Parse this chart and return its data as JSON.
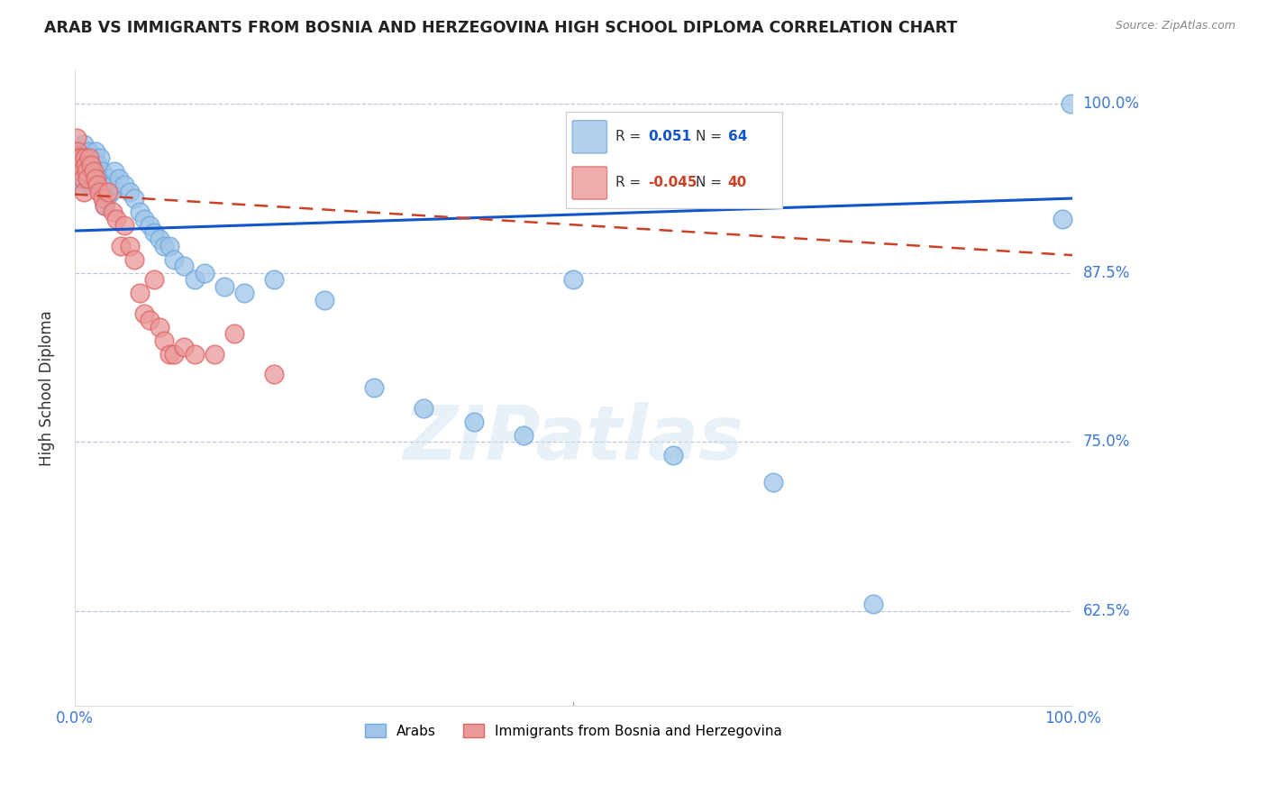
{
  "title": "ARAB VS IMMIGRANTS FROM BOSNIA AND HERZEGOVINA HIGH SCHOOL DIPLOMA CORRELATION CHART",
  "source": "Source: ZipAtlas.com",
  "ylabel": "High School Diploma",
  "ylabel_right_label_strs": [
    "100.0%",
    "87.5%",
    "75.0%",
    "62.5%"
  ],
  "ylabel_right_values": [
    1.0,
    0.875,
    0.75,
    0.625
  ],
  "legend_arab_r": "0.051",
  "legend_arab_n": "64",
  "legend_bosnia_r": "-0.045",
  "legend_bosnia_n": "40",
  "arab_color": "#9fc5e8",
  "bosnia_color": "#ea9999",
  "arab_edge_color": "#6fa8dc",
  "bosnia_edge_color": "#e06666",
  "trendline_arab_color": "#1155cc",
  "trendline_bosnia_color": "#cc4125",
  "background_color": "#ffffff",
  "watermark_text": "ZIPatlas",
  "arab_dots_x": [
    0.002,
    0.003,
    0.004,
    0.005,
    0.006,
    0.007,
    0.007,
    0.008,
    0.009,
    0.01,
    0.011,
    0.012,
    0.013,
    0.014,
    0.015,
    0.016,
    0.017,
    0.018,
    0.019,
    0.02,
    0.021,
    0.022,
    0.023,
    0.024,
    0.025,
    0.026,
    0.027,
    0.028,
    0.029,
    0.03,
    0.032,
    0.034,
    0.036,
    0.038,
    0.04,
    0.045,
    0.05,
    0.055,
    0.06,
    0.065,
    0.07,
    0.075,
    0.08,
    0.085,
    0.09,
    0.095,
    0.1,
    0.11,
    0.12,
    0.13,
    0.15,
    0.17,
    0.2,
    0.25,
    0.3,
    0.35,
    0.4,
    0.45,
    0.5,
    0.6,
    0.7,
    0.8,
    0.99,
    0.998
  ],
  "arab_dots_y": [
    0.96,
    0.95,
    0.955,
    0.945,
    0.94,
    0.965,
    0.95,
    0.96,
    0.97,
    0.955,
    0.95,
    0.945,
    0.96,
    0.955,
    0.965,
    0.95,
    0.94,
    0.955,
    0.945,
    0.96,
    0.965,
    0.95,
    0.94,
    0.955,
    0.945,
    0.96,
    0.95,
    0.94,
    0.935,
    0.925,
    0.93,
    0.945,
    0.935,
    0.94,
    0.95,
    0.945,
    0.94,
    0.935,
    0.93,
    0.92,
    0.915,
    0.91,
    0.905,
    0.9,
    0.895,
    0.895,
    0.885,
    0.88,
    0.87,
    0.875,
    0.865,
    0.86,
    0.87,
    0.855,
    0.79,
    0.775,
    0.765,
    0.755,
    0.87,
    0.74,
    0.72,
    0.63,
    0.915,
    1.0
  ],
  "bosnia_dots_x": [
    0.002,
    0.003,
    0.004,
    0.005,
    0.006,
    0.007,
    0.008,
    0.009,
    0.01,
    0.011,
    0.012,
    0.013,
    0.015,
    0.017,
    0.019,
    0.021,
    0.023,
    0.025,
    0.028,
    0.03,
    0.034,
    0.038,
    0.042,
    0.046,
    0.05,
    0.055,
    0.06,
    0.065,
    0.07,
    0.075,
    0.08,
    0.085,
    0.09,
    0.095,
    0.1,
    0.11,
    0.12,
    0.14,
    0.16,
    0.2
  ],
  "bosnia_dots_y": [
    0.975,
    0.965,
    0.96,
    0.955,
    0.95,
    0.96,
    0.945,
    0.935,
    0.96,
    0.955,
    0.95,
    0.945,
    0.96,
    0.955,
    0.95,
    0.945,
    0.94,
    0.935,
    0.93,
    0.925,
    0.935,
    0.92,
    0.915,
    0.895,
    0.91,
    0.895,
    0.885,
    0.86,
    0.845,
    0.84,
    0.87,
    0.835,
    0.825,
    0.815,
    0.815,
    0.82,
    0.815,
    0.815,
    0.83,
    0.8
  ],
  "xlim": [
    0.0,
    1.0
  ],
  "ylim": [
    0.555,
    1.025
  ],
  "arab_trend_x0": 0.0,
  "arab_trend_x1": 1.0,
  "arab_trend_y0": 0.906,
  "arab_trend_y1": 0.93,
  "bosnia_trend_x0": 0.0,
  "bosnia_trend_x1": 1.0,
  "bosnia_trend_y0": 0.933,
  "bosnia_trend_y1": 0.888
}
